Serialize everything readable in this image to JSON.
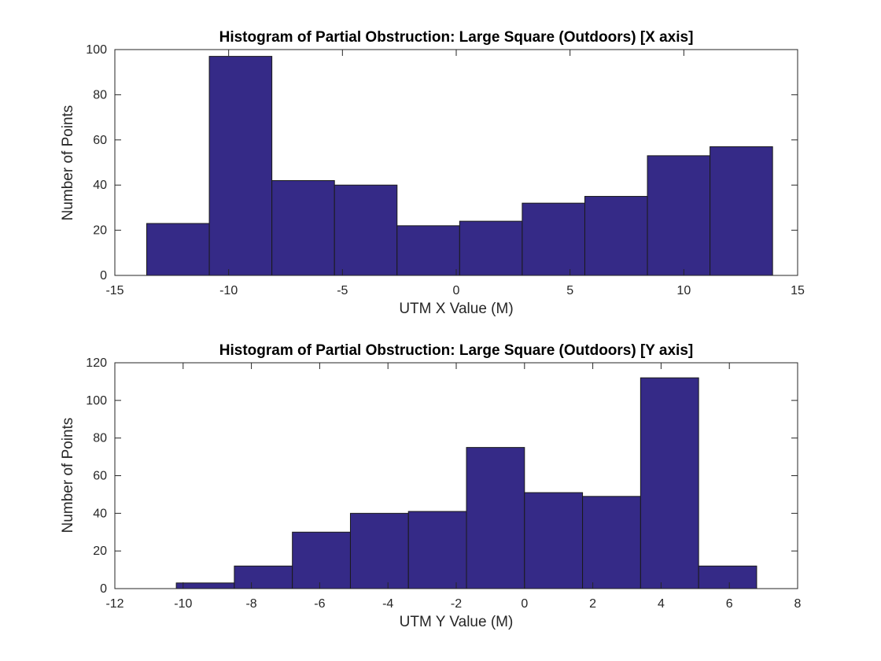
{
  "chart_data": [
    {
      "type": "bar",
      "title": "Histogram of Partial Obstruction: Large Square (Outdoors) [X axis]",
      "xlabel": "UTM X Value (M)",
      "ylabel": "Number of Points",
      "xlim": [
        -15,
        15
      ],
      "ylim": [
        0,
        100
      ],
      "xticks": [
        -15,
        -10,
        -5,
        0,
        5,
        10,
        15
      ],
      "yticks": [
        0,
        20,
        40,
        60,
        80,
        100
      ],
      "bin_edges": [
        -13.6,
        -10.85,
        -8.1,
        -5.35,
        -2.6,
        0.15,
        2.9,
        5.65,
        8.4,
        11.15,
        13.9
      ],
      "values": [
        23,
        97,
        42,
        40,
        22,
        24,
        32,
        35,
        53,
        57
      ],
      "bar_color": "#352a87",
      "grid": false
    },
    {
      "type": "bar",
      "title": "Histogram of Partial Obstruction: Large Square (Outdoors) [Y axis]",
      "xlabel": "UTM Y Value (M)",
      "ylabel": "Number of Points",
      "xlim": [
        -12,
        8
      ],
      "ylim": [
        0,
        120
      ],
      "xticks": [
        -12,
        -10,
        -8,
        -6,
        -4,
        -2,
        0,
        2,
        4,
        6,
        8
      ],
      "yticks": [
        0,
        20,
        40,
        60,
        80,
        100,
        120
      ],
      "bin_edges": [
        -10.2,
        -8.5,
        -6.8,
        -5.1,
        -3.4,
        -1.7,
        0,
        1.7,
        3.4,
        5.1,
        6.8
      ],
      "values": [
        3,
        12,
        30,
        40,
        41,
        75,
        51,
        49,
        112,
        12
      ],
      "bar_color": "#352a87",
      "grid": false
    }
  ]
}
